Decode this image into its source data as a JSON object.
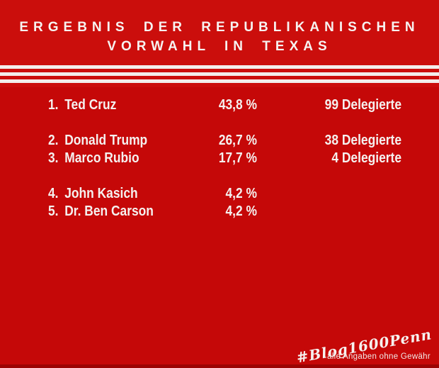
{
  "title": {
    "line1": "ERGEBNIS DER REPUBLIKANISCHEN",
    "line2": "VORWAHL IN TEXAS"
  },
  "results": [
    {
      "rank_label": "1.",
      "name": "Ted Cruz",
      "percent_label": "43,8 %",
      "delegates_label": "99 Delegierte"
    },
    {
      "rank_label": "2.",
      "name": "Donald Trump",
      "percent_label": "26,7 %",
      "delegates_label": "38 Delegierte"
    },
    {
      "rank_label": "3.",
      "name": "Marco Rubio",
      "percent_label": "17,7 %",
      "delegates_label": "4 Delegierte"
    },
    {
      "rank_label": "4.",
      "name": "John Kasich",
      "percent_label": "4,2 %",
      "delegates_label": ""
    },
    {
      "rank_label": "5.",
      "name": "Dr. Ben Carson",
      "percent_label": "4,2 %",
      "delegates_label": ""
    }
  ],
  "footer": {
    "hashtag": "#Blog1600Penn",
    "disclaimer": "alle Angaben ohne Gewähr"
  },
  "colors": {
    "background": "#c50808",
    "header_background": "#cb0e0c",
    "stripe": "#f3eeec",
    "text": "#f5f1ef",
    "bottom_strip": "#9b0303"
  },
  "chart_data": {
    "type": "table",
    "title": "Ergebnis der republikanischen Vorwahl in Texas",
    "note": "alle Angaben ohne Gewähr",
    "rows": [
      {
        "rank": 1,
        "candidate": "Ted Cruz",
        "percent": 43.8,
        "delegates": 99
      },
      {
        "rank": 2,
        "candidate": "Donald Trump",
        "percent": 26.7,
        "delegates": 38
      },
      {
        "rank": 3,
        "candidate": "Marco Rubio",
        "percent": 17.7,
        "delegates": 4
      },
      {
        "rank": 4,
        "candidate": "John Kasich",
        "percent": 4.2,
        "delegates": null
      },
      {
        "rank": 5,
        "candidate": "Dr. Ben Carson",
        "percent": 4.2,
        "delegates": null
      }
    ]
  }
}
